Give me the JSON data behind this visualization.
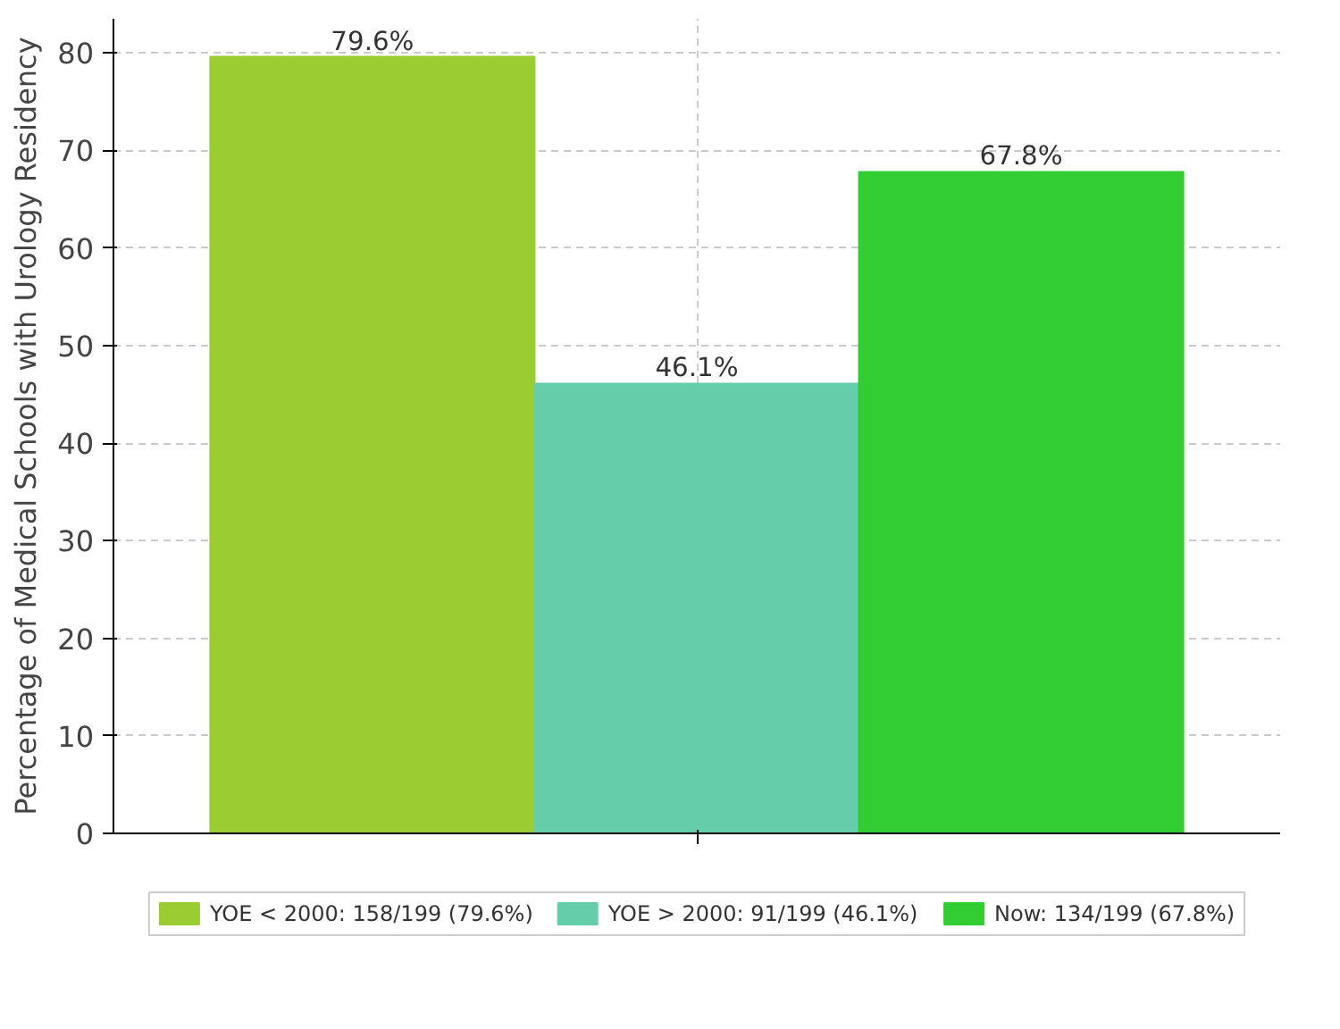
{
  "chart_data": {
    "type": "bar",
    "ylabel": "Percentage of Medical Schools with Urology Residency",
    "categories": [
      null
    ],
    "series": [
      {
        "name": "YOE < 2000: 158/199 (79.6%)",
        "color": "#9acd32",
        "values": [
          79.6
        ],
        "value_labels": [
          "79.6%"
        ]
      },
      {
        "name": "YOE > 2000: 91/199 (46.1%)",
        "color": "#66cdaa",
        "values": [
          46.1
        ],
        "value_labels": [
          "46.1%"
        ]
      },
      {
        "name": "Now: 134/199 (67.8%)",
        "color": "#32cd32",
        "values": [
          67.8
        ],
        "value_labels": [
          "67.8%"
        ]
      }
    ],
    "ylim": [
      0,
      83.5
    ],
    "yticks": [
      0,
      10,
      20,
      30,
      40,
      50,
      60,
      70,
      80
    ],
    "grid": true,
    "legend": "bottom"
  }
}
